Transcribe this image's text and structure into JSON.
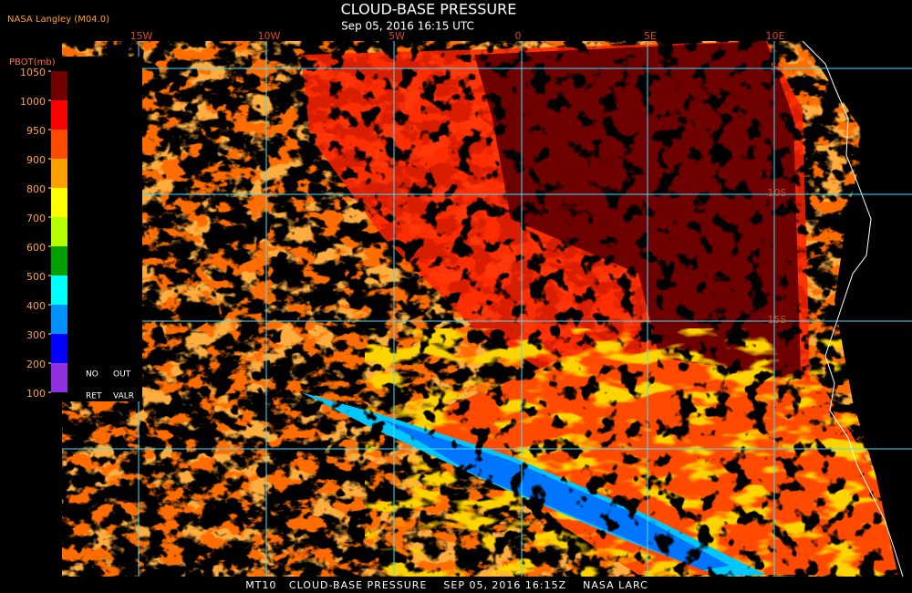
{
  "header": {
    "title": "CLOUD-BASE PRESSURE",
    "subtitle": "Sep 05, 2016 16:15 UTC",
    "credit": "NASA Langley (M04.0)"
  },
  "colorbar": {
    "title": "PBOT(mb)",
    "ticks": [
      1050,
      1000,
      950,
      900,
      800,
      700,
      600,
      500,
      400,
      300,
      200,
      100
    ],
    "colors": [
      "#6e0000",
      "#ff0000",
      "#ff4a00",
      "#ffa000",
      "#ffff00",
      "#b4ff00",
      "#00a000",
      "#00ffff",
      "#0090ff",
      "#0000ff",
      "#9030e0"
    ],
    "no_retrieval": [
      "NO",
      "OUT",
      "RET",
      "VALR"
    ]
  },
  "map": {
    "longitude_labels": [
      "15W",
      "10W",
      "5W",
      "0",
      "5E",
      "10E"
    ],
    "latitude_labels": [
      "5S",
      "10S",
      "15S"
    ]
  },
  "footer": "MT10   CLOUD-BASE PRESSURE    SEP 05, 2016 16:15Z    NASA LARC"
}
